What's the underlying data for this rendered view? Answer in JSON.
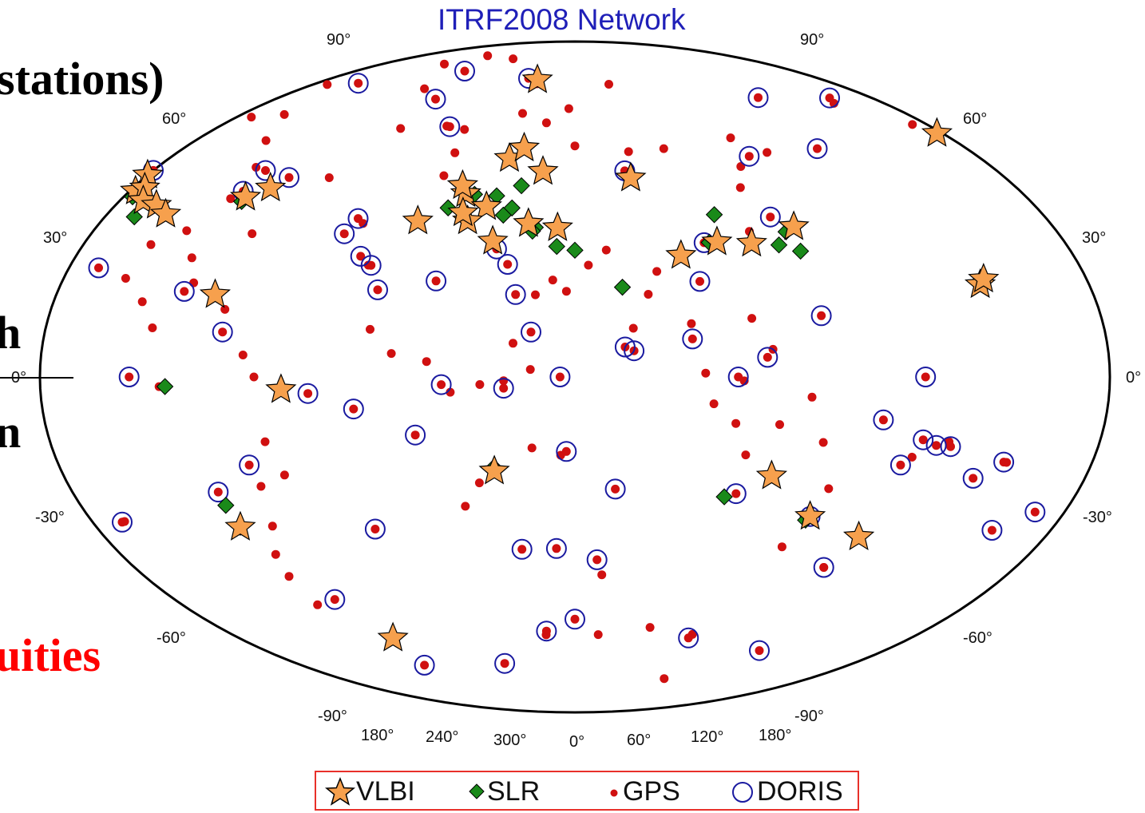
{
  "title": "ITRF2008 Network",
  "side_text": {
    "stations": "stations)",
    "h": "h",
    "n": "n",
    "uities": "uities"
  },
  "graticule_labels": {
    "lat_left": [
      "90°",
      "60°",
      "30°",
      "0°",
      "-30°",
      "-60°",
      "-90°"
    ],
    "lat_right": [
      "90°",
      "60°",
      "30°",
      "0°",
      "-30°",
      "-60°",
      "-90°"
    ],
    "lon": [
      "180°",
      "240°",
      "300°",
      "0°",
      "60°",
      "120°",
      "180°"
    ]
  },
  "legend": {
    "items": [
      {
        "label": "VLBI",
        "symbol": "star",
        "color": "#f6a04d"
      },
      {
        "label": "SLR",
        "symbol": "diamond",
        "color": "#1a8a1a"
      },
      {
        "label": "GPS",
        "symbol": "dot",
        "color": "#d01010"
      },
      {
        "label": "DORIS",
        "symbol": "ring",
        "color": "#1a1aa0"
      }
    ]
  },
  "colors": {
    "vlbi_fill": "#f6a04d",
    "slr_fill": "#1a8a1a",
    "gps_fill": "#d01010",
    "doris_stroke": "#1a1aa0",
    "frame": "#000000",
    "coast": "#aaaaaa",
    "legend_border": "#e8302a",
    "highlight_text": "#ff0000"
  },
  "stations": {
    "vlbi": [
      [
        -157,
        19
      ],
      [
        -155,
        20
      ],
      [
        -120,
        37
      ],
      [
        -118,
        34
      ],
      [
        -116,
        35
      ],
      [
        -112,
        33
      ],
      [
        -122,
        47
      ],
      [
        -106,
        33
      ],
      [
        -100,
        32
      ],
      [
        -71,
        42
      ],
      [
        -77,
        39
      ],
      [
        -66,
        18
      ],
      [
        -39,
        -3
      ],
      [
        -70,
        -33
      ],
      [
        -58,
        -63
      ],
      [
        12,
        79
      ],
      [
        11,
        48
      ],
      [
        8,
        50
      ],
      [
        25,
        58
      ],
      [
        31,
        61
      ],
      [
        22,
        45
      ],
      [
        16,
        41
      ],
      [
        13,
        43
      ],
      [
        -4,
        40
      ],
      [
        28,
        36
      ],
      [
        41,
        41
      ],
      [
        53,
        40
      ],
      [
        31,
        -25
      ],
      [
        44,
        55
      ],
      [
        87,
        53
      ],
      [
        100,
        32
      ],
      [
        115,
        35
      ],
      [
        128,
        34
      ],
      [
        147,
        37
      ],
      [
        131,
        -25
      ],
      [
        151,
        -34
      ],
      [
        174,
        -37
      ]
    ],
    "slr": [
      [
        -156,
        20
      ],
      [
        -117,
        33
      ],
      [
        -110,
        30
      ],
      [
        -77,
        38
      ],
      [
        -78,
        -2
      ],
      [
        -70,
        -28
      ],
      [
        -70,
        -33
      ],
      [
        6,
        44
      ],
      [
        15,
        48
      ],
      [
        25,
        48
      ],
      [
        33,
        45
      ],
      [
        35,
        51
      ],
      [
        44,
        40
      ],
      [
        30,
        43
      ],
      [
        53,
        35
      ],
      [
        60,
        34
      ],
      [
        77,
        24
      ],
      [
        112,
        35
      ],
      [
        118,
        42
      ],
      [
        138,
        33
      ],
      [
        143,
        36
      ],
      [
        145,
        31
      ],
      [
        116,
        -31
      ],
      [
        150,
        -35
      ],
      [
        31,
        -24
      ],
      [
        43,
        39
      ]
    ],
    "gps_extra": [
      [
        -138,
        59
      ],
      [
        -125,
        50
      ],
      [
        -115,
        52
      ],
      [
        -105,
        55
      ],
      [
        -95,
        50
      ],
      [
        -85,
        45
      ],
      [
        -82,
        38
      ],
      [
        -88,
        30
      ],
      [
        -97,
        26
      ],
      [
        -99,
        19
      ],
      [
        -90,
        15
      ],
      [
        -84,
        10
      ],
      [
        -80,
        25
      ],
      [
        -75,
        20
      ],
      [
        -61,
        15
      ],
      [
        -52,
        5
      ],
      [
        -48,
        0
      ],
      [
        -47,
        -15
      ],
      [
        -44,
        -23
      ],
      [
        -54,
        -25
      ],
      [
        -58,
        -34
      ],
      [
        -65,
        -40
      ],
      [
        -68,
        -45
      ],
      [
        -70,
        -52
      ],
      [
        -64,
        32
      ],
      [
        -52,
        47
      ],
      [
        -45,
        61
      ],
      [
        -68,
        70
      ],
      [
        -95,
        75
      ],
      [
        -115,
        62
      ],
      [
        -25,
        38
      ],
      [
        -16,
        28
      ],
      [
        -10,
        12
      ],
      [
        -2,
        6
      ],
      [
        10,
        4
      ],
      [
        18,
        -4
      ],
      [
        28,
        -2
      ],
      [
        36,
        -1
      ],
      [
        39,
        9
      ],
      [
        45,
        2
      ],
      [
        46,
        22
      ],
      [
        52,
        26
      ],
      [
        57,
        23
      ],
      [
        65,
        30
      ],
      [
        72,
        34
      ],
      [
        80,
        13
      ],
      [
        86,
        22
      ],
      [
        90,
        28
      ],
      [
        100,
        14
      ],
      [
        104,
        1
      ],
      [
        107,
        -7
      ],
      [
        117,
        -1
      ],
      [
        121,
        15
      ],
      [
        127,
        7
      ],
      [
        129,
        37
      ],
      [
        135,
        48
      ],
      [
        142,
        53
      ],
      [
        150,
        60
      ],
      [
        160,
        55
      ],
      [
        110,
        60
      ],
      [
        90,
        60
      ],
      [
        60,
        62
      ],
      [
        55,
        72
      ],
      [
        40,
        68
      ],
      [
        20,
        70
      ],
      [
        115,
        -12
      ],
      [
        120,
        -20
      ],
      [
        130,
        -12
      ],
      [
        140,
        -5
      ],
      [
        146,
        -16
      ],
      [
        153,
        -27
      ],
      [
        147,
        -42
      ],
      [
        170,
        -45
      ],
      [
        178,
        -18
      ],
      [
        -171,
        -14
      ],
      [
        -149,
        -17
      ],
      [
        -109,
        -27
      ],
      [
        -80,
        -2
      ],
      [
        18,
        -34
      ],
      [
        25,
        -28
      ],
      [
        45,
        -19
      ],
      [
        55,
        -21
      ],
      [
        73,
        -53
      ],
      [
        39,
        -69
      ],
      [
        77,
        -69
      ],
      [
        110,
        -66
      ],
      [
        140,
        -66
      ],
      [
        167,
        -77
      ],
      [
        -90,
        80
      ],
      [
        -60,
        82
      ],
      [
        15,
        78
      ],
      [
        100,
        78
      ],
      [
        -10,
        64
      ],
      [
        -22,
        64
      ],
      [
        -5,
        58
      ],
      [
        -3,
        52
      ]
    ],
    "doris": [
      [
        -165,
        66
      ],
      [
        -135,
        60
      ],
      [
        -105,
        65
      ],
      [
        -70,
        76
      ],
      [
        -50,
        69
      ],
      [
        -20,
        64
      ],
      [
        0,
        79
      ],
      [
        85,
        55
      ],
      [
        150,
        55
      ],
      [
        -176,
        53
      ],
      [
        -120,
        38
      ],
      [
        -80,
        40
      ],
      [
        -68,
        45
      ],
      [
        -77,
        18
      ],
      [
        -110,
        20
      ],
      [
        -90,
        0
      ],
      [
        -80,
        45
      ],
      [
        -60,
        10
      ],
      [
        -30,
        35
      ],
      [
        -20,
        30
      ],
      [
        -28,
        39
      ],
      [
        30,
        34
      ],
      [
        35,
        30
      ],
      [
        39,
        22
      ],
      [
        -15,
        28
      ],
      [
        -10,
        22
      ],
      [
        10,
        25
      ],
      [
        45,
        12
      ],
      [
        55,
        0
      ],
      [
        77,
        8
      ],
      [
        80,
        7
      ],
      [
        -150,
        -17
      ],
      [
        -170,
        -15
      ],
      [
        -130,
        -25
      ],
      [
        -140,
        -30
      ],
      [
        -110,
        -27
      ],
      [
        -158,
        -21
      ],
      [
        -175,
        -15
      ],
      [
        -180,
        -14
      ],
      [
        -30,
        -4
      ],
      [
        -15,
        -8
      ],
      [
        5,
        -15
      ],
      [
        15,
        -2
      ],
      [
        36,
        -3
      ],
      [
        57,
        -20
      ],
      [
        75,
        -30
      ],
      [
        70,
        -49
      ],
      [
        52,
        -46
      ],
      [
        37,
        -46
      ],
      [
        -20,
        -38
      ],
      [
        -70,
        -25
      ],
      [
        -55,
        -20
      ],
      [
        -60,
        -52
      ],
      [
        -68,
        -70
      ],
      [
        -10,
        -75
      ],
      [
        40,
        -68
      ],
      [
        140,
        -67
      ],
      [
        110,
        35
      ],
      [
        105,
        25
      ],
      [
        100,
        10
      ],
      [
        125,
        5
      ],
      [
        140,
        40
      ],
      [
        145,
        15
      ],
      [
        115,
        0
      ],
      [
        120,
        -30
      ],
      [
        151,
        -34
      ],
      [
        170,
        -45
      ],
      [
        178,
        0
      ],
      [
        175,
        -20
      ],
      [
        165,
        -10
      ],
      [
        60,
        -65
      ],
      [
        -170,
        -65
      ]
    ]
  }
}
